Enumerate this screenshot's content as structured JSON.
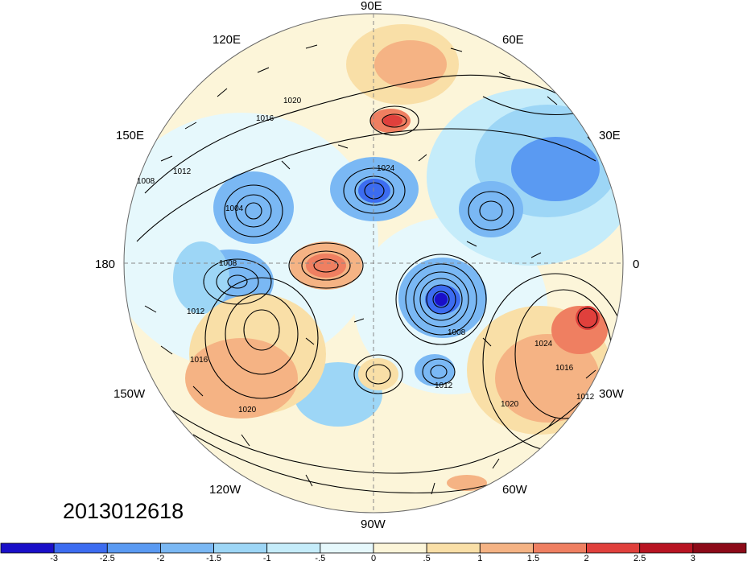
{
  "timestamp": "2013012618",
  "longitude_labels": {
    "e90": "90E",
    "e60": "60E",
    "e120": "120E",
    "e30": "30E",
    "e150": "150E",
    "e0": "0",
    "e180": "180",
    "w30": "30W",
    "w150": "150W",
    "w60": "60W",
    "w120": "120W",
    "w90": "90W"
  },
  "isobar_labels": [
    "1016",
    "1020",
    "1012",
    "1008",
    "1004",
    "1024",
    "1012",
    "1008",
    "1016",
    "1020",
    "1012",
    "1008",
    "1024",
    "1016",
    "1020",
    "1012"
  ],
  "colorbar": {
    "tick_labels": [
      "-3",
      "-2.5",
      "-2",
      "-1.5",
      "-1",
      "-.5",
      "0",
      ".5",
      "1",
      "1.5",
      "2",
      "2.5",
      "3"
    ],
    "colors": [
      "#1a0fc8",
      "#3c6cf0",
      "#5a9af2",
      "#7ab8f4",
      "#9dd6f6",
      "#c5ecfa",
      "#e6f8fc",
      "#fcf5d9",
      "#f9dfa7",
      "#f5b384",
      "#ef7f61",
      "#e0403c",
      "#b81422",
      "#8c0a18"
    ]
  },
  "anomaly_colors": {
    "strong_negative": "#1a0fc8",
    "negative": "#5a9af2",
    "weak_negative": "#9dd6f6",
    "neutral_cool": "#e6f8fc",
    "neutral_warm": "#fcf5d9",
    "weak_positive": "#f9dfa7",
    "positive": "#ef7f61",
    "strong_positive": "#b81422"
  }
}
